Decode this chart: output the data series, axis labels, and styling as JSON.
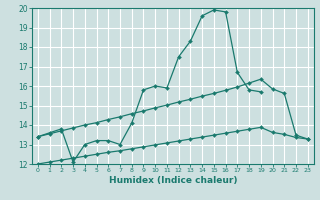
{
  "xlabel": "Humidex (Indice chaleur)",
  "xlim": [
    -0.5,
    23.5
  ],
  "ylim": [
    12,
    20
  ],
  "yticks": [
    12,
    13,
    14,
    15,
    16,
    17,
    18,
    19,
    20
  ],
  "xtick_labels": [
    "0",
    "1",
    "2",
    "3",
    "4",
    "5",
    "6",
    "7",
    "8",
    "9",
    "10",
    "11",
    "12",
    "13",
    "14",
    "15",
    "16",
    "17",
    "18",
    "19",
    "20",
    "21",
    "22",
    "23"
  ],
  "bg_color": "#cde0e0",
  "line_color": "#1a7a6e",
  "grid_color": "#ffffff",
  "series": [
    {
      "x": [
        0,
        1,
        2,
        3,
        4,
        5,
        6,
        7,
        8,
        9,
        10,
        11,
        12,
        13,
        14,
        15,
        16,
        17,
        18,
        19
      ],
      "y": [
        13.4,
        13.6,
        13.8,
        12.1,
        13.0,
        13.2,
        13.2,
        13.0,
        14.1,
        15.8,
        16.0,
        15.9,
        17.5,
        18.3,
        19.6,
        19.9,
        19.8,
        16.7,
        15.8,
        15.7
      ]
    },
    {
      "x": [
        0,
        1,
        2,
        3,
        4,
        5,
        6,
        7,
        8,
        9,
        10,
        11,
        12,
        13,
        14,
        15,
        16,
        17,
        18,
        19,
        20,
        21,
        22,
        23
      ],
      "y": [
        13.4,
        13.55,
        13.7,
        13.85,
        14.0,
        14.12,
        14.28,
        14.42,
        14.58,
        14.72,
        14.88,
        15.02,
        15.18,
        15.32,
        15.48,
        15.62,
        15.78,
        15.95,
        16.15,
        16.35,
        15.85,
        15.62,
        13.48,
        13.28
      ]
    },
    {
      "x": [
        0,
        1,
        2,
        3,
        4,
        5,
        6,
        7,
        8,
        9,
        10,
        11,
        12,
        13,
        14,
        15,
        16,
        17,
        18,
        19,
        20,
        21,
        22,
        23
      ],
      "y": [
        12.0,
        12.1,
        12.2,
        12.3,
        12.4,
        12.5,
        12.6,
        12.68,
        12.78,
        12.88,
        12.98,
        13.08,
        13.18,
        13.28,
        13.38,
        13.48,
        13.58,
        13.68,
        13.78,
        13.88,
        13.62,
        13.52,
        13.36,
        13.28
      ]
    }
  ]
}
